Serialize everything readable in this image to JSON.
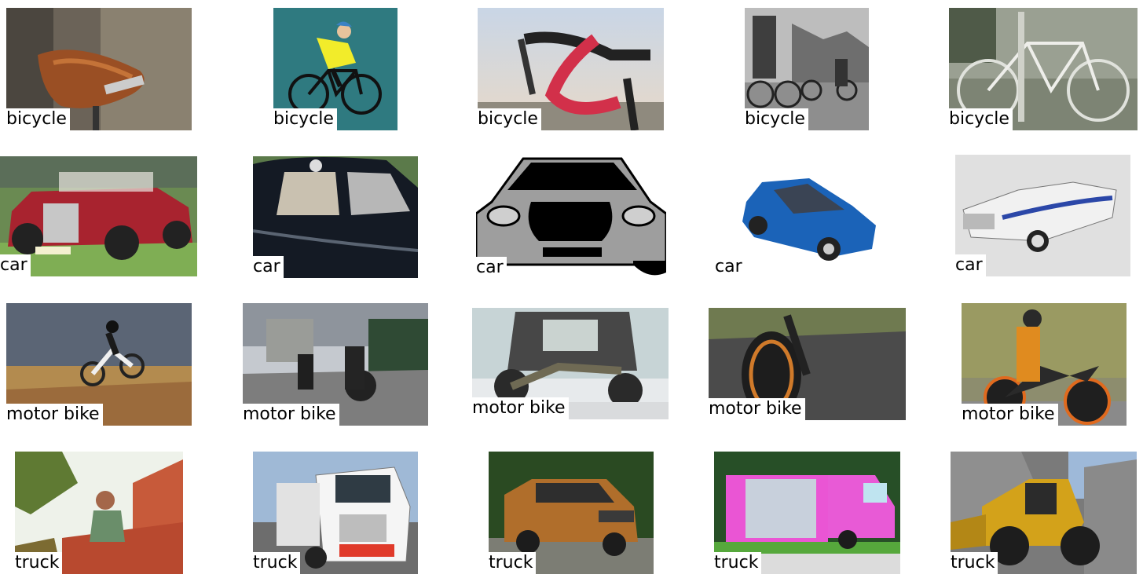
{
  "grid": {
    "rows": [
      {
        "category": "bicycle",
        "items": [
          {
            "label": "bicycle",
            "subject": "leather-saddle"
          },
          {
            "label": "bicycle",
            "subject": "cyclist-illustration"
          },
          {
            "label": "bicycle",
            "subject": "handlebar-red-tape"
          },
          {
            "label": "bicycle",
            "subject": "riders-bw"
          },
          {
            "label": "bicycle",
            "subject": "parked-bicycle"
          }
        ]
      },
      {
        "category": "car",
        "items": [
          {
            "label": "car",
            "subject": "vintage-red-roadster"
          },
          {
            "label": "car",
            "subject": "black-classic-door"
          },
          {
            "label": "car",
            "subject": "grey-car-illustration"
          },
          {
            "label": "car",
            "subject": "blue-hatchback"
          },
          {
            "label": "car",
            "subject": "white-blue-cabriolet"
          }
        ]
      },
      {
        "category": "motor bike",
        "items": [
          {
            "label": "motor bike",
            "subject": "motocross-jump"
          },
          {
            "label": "motor bike",
            "subject": "two-riders-road"
          },
          {
            "label": "motor bike",
            "subject": "vintage-museum"
          },
          {
            "label": "motor bike",
            "subject": "front-wheel-road"
          },
          {
            "label": "motor bike",
            "subject": "orange-sport-bike"
          }
        ]
      },
      {
        "category": "truck",
        "items": [
          {
            "label": "truck",
            "subject": "worker-bricks"
          },
          {
            "label": "truck",
            "subject": "white-tow-truck"
          },
          {
            "label": "truck",
            "subject": "bronze-pickup"
          },
          {
            "label": "truck",
            "subject": "pink-food-truck"
          },
          {
            "label": "truck",
            "subject": "yellow-wheel-loader"
          }
        ]
      }
    ]
  }
}
